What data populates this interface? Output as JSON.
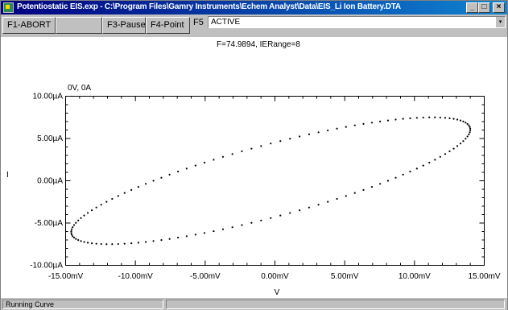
{
  "window": {
    "title": "Potentiostatic EIS.exp - C:\\Program Files\\Gamry Instruments\\Echem Analyst\\Data\\EIS_Li Ion Battery.DTA",
    "icon": "gamry-app-icon",
    "controls": {
      "minimize": "_",
      "maximize": "□",
      "close": "×"
    }
  },
  "toolbar": {
    "keys": [
      {
        "label": "F1-ABORT"
      },
      {
        "label": ""
      },
      {
        "label": "F3-Pause"
      },
      {
        "label": "F4-Point"
      }
    ],
    "f5_label": "F5",
    "status_value": "ACTIVE",
    "status_arrow": "▾"
  },
  "readout": "F=74.9894, IERange=8",
  "chart_data": {
    "type": "scatter",
    "title": "",
    "annotation": "0V, 0A",
    "xlabel": "V",
    "ylabel": "I",
    "x_unit": "mV",
    "y_unit": "µA",
    "xlim": [
      -15,
      15
    ],
    "ylim": [
      -10,
      10
    ],
    "x_tick_values": [
      -15,
      -10,
      -5,
      0,
      5,
      10,
      15
    ],
    "y_tick_values": [
      10,
      5,
      0,
      -5,
      -10
    ],
    "x_tick_labels": [
      "-15.00mV",
      "-10.00mV",
      "-5.00mV",
      "0.00mV",
      "5.00mV",
      "10.00mV",
      "15.00mV"
    ],
    "y_tick_labels": [
      "10.00µA",
      "5.00µA",
      "0.00µA",
      "-5.00µA",
      "-10.00µA"
    ],
    "minor_ticks": true,
    "grid": false,
    "series": [
      {
        "marker": "dot",
        "color": "#000000",
        "shape": "ellipse",
        "x_center": -0.3,
        "y_center": 0,
        "x_amplitude": 14.3,
        "y_amplitude": 7.5,
        "phase_lag_deg": 36,
        "point_count": 130
      }
    ]
  },
  "statusbar": {
    "left": "Running Curve",
    "right": ""
  }
}
